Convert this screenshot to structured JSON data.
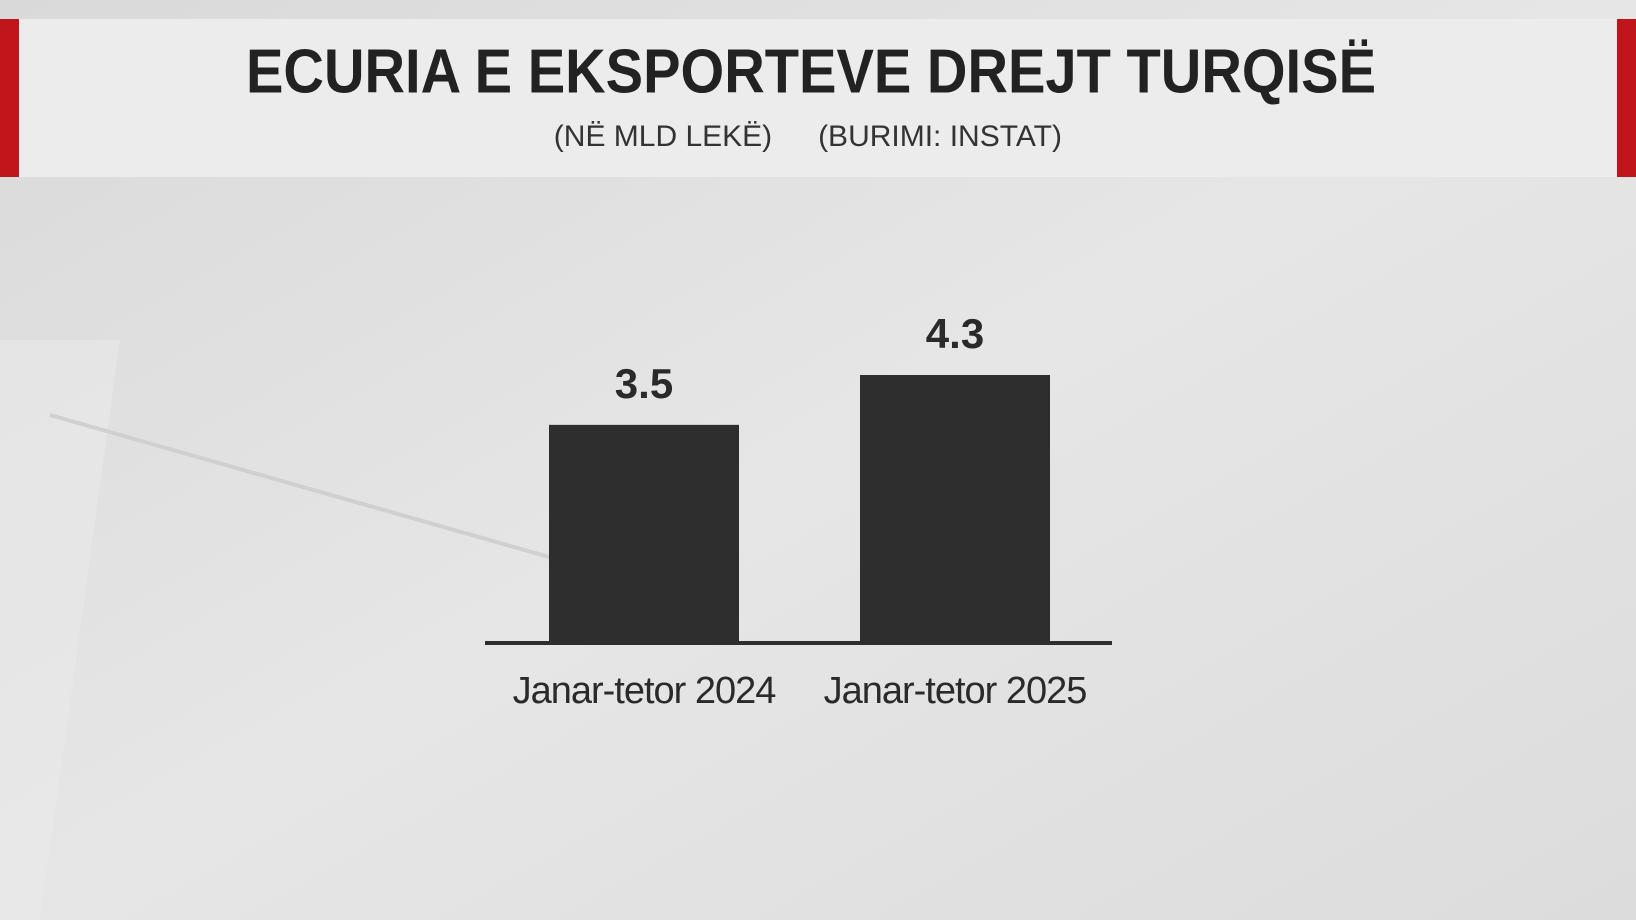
{
  "chart_data": {
    "type": "bar",
    "title": "ECURIA E EKSPORTEVE DREJT TURQISË",
    "subtitle": [
      "(NË MLD LEKË)",
      "(BURIMI: INSTAT)"
    ],
    "categories": [
      "Janar-tetor 2024",
      "Janar-tetor 2025"
    ],
    "values": [
      3.5,
      4.3
    ],
    "color": "#2e2e2e"
  }
}
